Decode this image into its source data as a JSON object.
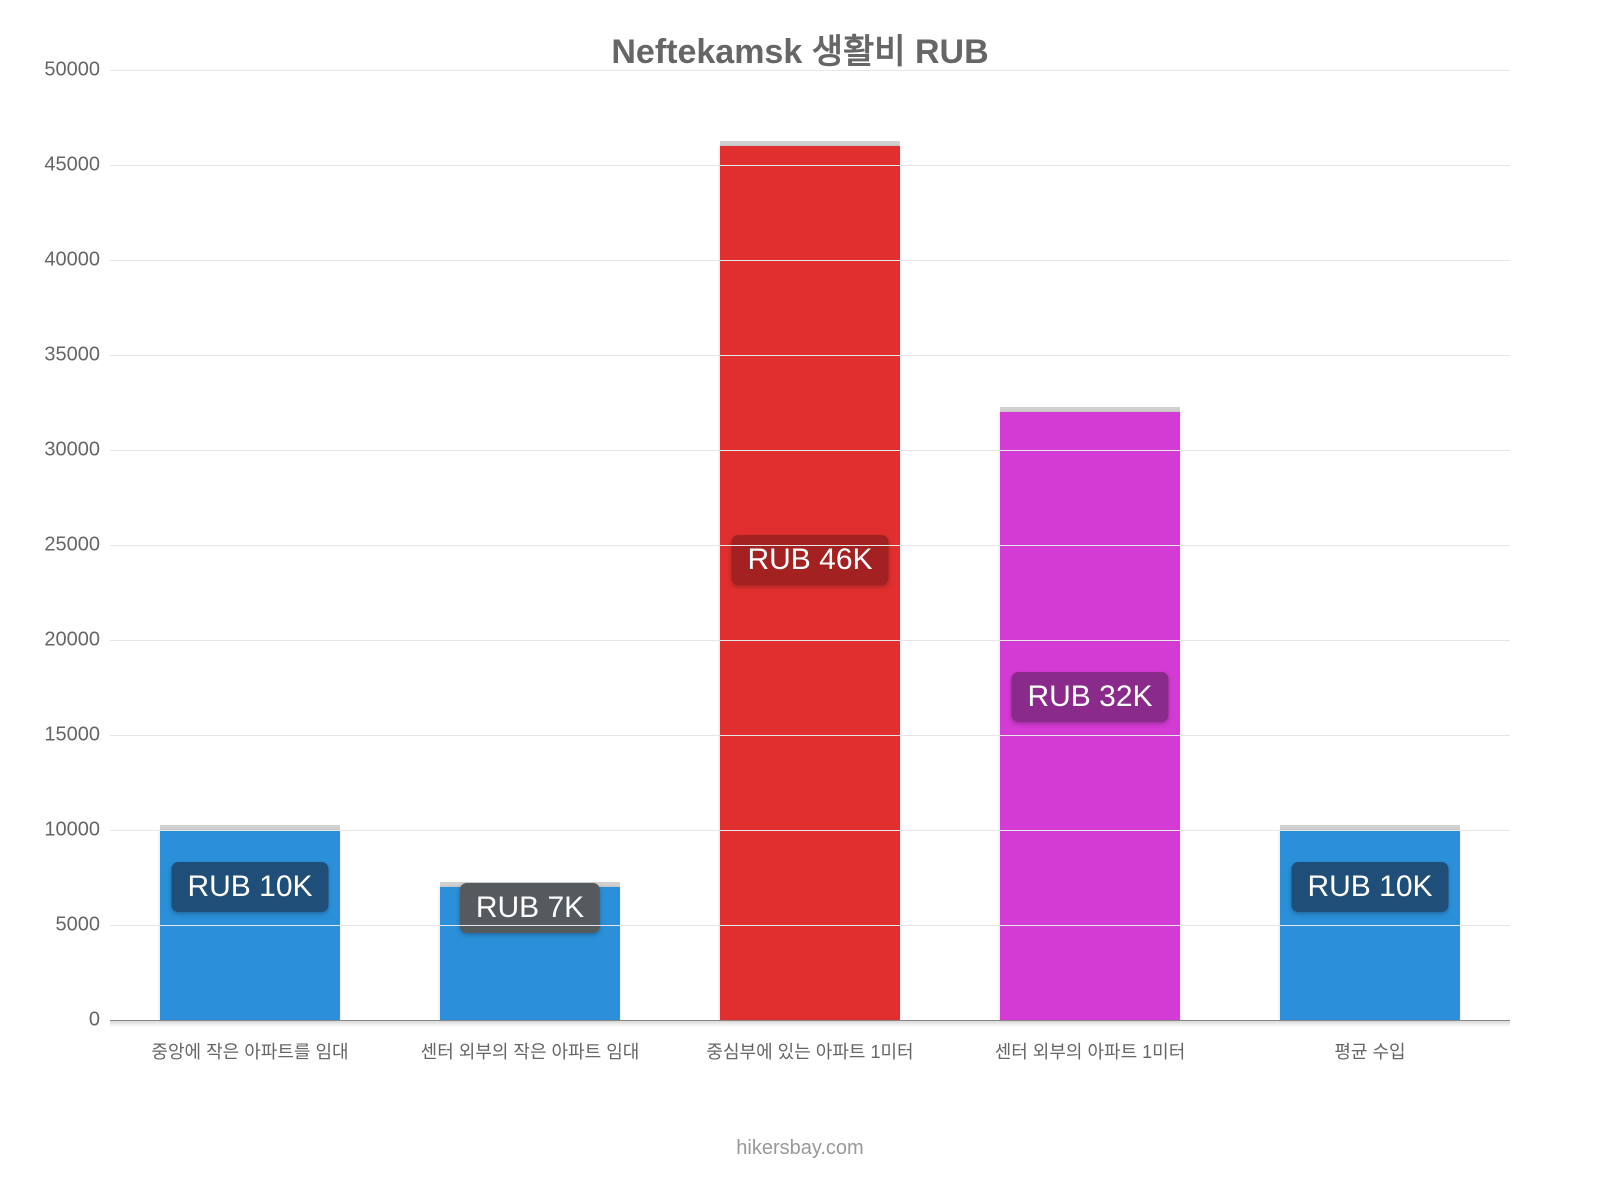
{
  "title": "Neftekamsk 생활비 RUB",
  "footer": "hikersbay.com",
  "chart": {
    "type": "bar",
    "ylim": [
      0,
      50000
    ],
    "ytick_step": 5000,
    "grid_color": "#e6e6e6",
    "axis_color": "#878787",
    "background_color": "#ffffff",
    "title_fontsize": 34,
    "title_color": "#666666",
    "tick_fontsize": 20,
    "tick_color": "#666666",
    "xlabel_fontsize": 18,
    "xlabel_color": "#666666",
    "bar_width_ratio": 0.64,
    "badge_fontsize": 30,
    "categories": [
      "중앙에 작은 아파트를 임대",
      "센터 외부의 작은 아파트 임대",
      "중심부에 있는 아파트 1미터",
      "센터 외부의 아파트 1미터",
      "평균 수입"
    ],
    "values": [
      10000,
      7000,
      46000,
      32000,
      10000
    ],
    "bar_colors": [
      "#2b90d9",
      "#2b90d9",
      "#e12f2f",
      "#d43bd4",
      "#2b90d9"
    ],
    "badge_labels": [
      "RUB 10K",
      "RUB 7K",
      "RUB 46K",
      "RUB 32K",
      "RUB 10K"
    ],
    "badge_bg_colors": [
      "#1f4e79",
      "#555a5e",
      "#a32121",
      "#8a2a8a",
      "#1f4e79"
    ],
    "badge_y_values": [
      7000,
      5900,
      24200,
      17000,
      7000
    ]
  }
}
